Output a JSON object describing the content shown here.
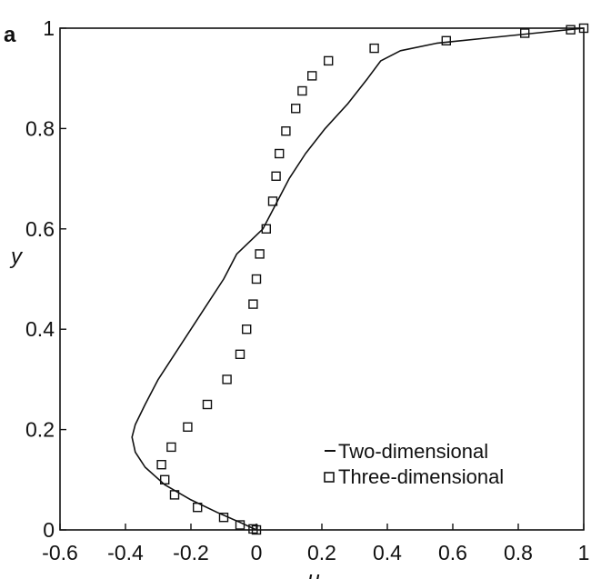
{
  "panel_label": "a",
  "chart_data": {
    "type": "scatter",
    "xlabel": "u",
    "ylabel": "y",
    "xlim": [
      -0.6,
      1.0
    ],
    "ylim": [
      0,
      1.0
    ],
    "xticks": [
      "-0.6",
      "-0.4",
      "-0.2",
      "0",
      "0.2",
      "0.4",
      "0.6",
      "0.8",
      "1"
    ],
    "yticks": [
      "0",
      "0.2",
      "0.4",
      "0.6",
      "0.8",
      "1"
    ],
    "grid": false,
    "legend_position": "bottom-right",
    "series": [
      {
        "name": "Two-dimensional",
        "style": "line",
        "color": "#111111",
        "points": [
          [
            0,
            0
          ],
          [
            -0.05,
            0.015
          ],
          [
            -0.12,
            0.035
          ],
          [
            -0.2,
            0.06
          ],
          [
            -0.28,
            0.09
          ],
          [
            -0.34,
            0.125
          ],
          [
            -0.37,
            0.155
          ],
          [
            -0.38,
            0.185
          ],
          [
            -0.37,
            0.21
          ],
          [
            -0.34,
            0.25
          ],
          [
            -0.3,
            0.3
          ],
          [
            -0.25,
            0.35
          ],
          [
            -0.2,
            0.4
          ],
          [
            -0.15,
            0.45
          ],
          [
            -0.1,
            0.5
          ],
          [
            -0.06,
            0.55
          ],
          [
            0.02,
            0.6
          ],
          [
            0.06,
            0.65
          ],
          [
            0.1,
            0.7
          ],
          [
            0.15,
            0.75
          ],
          [
            0.21,
            0.8
          ],
          [
            0.28,
            0.85
          ],
          [
            0.34,
            0.9
          ],
          [
            0.38,
            0.935
          ],
          [
            0.44,
            0.955
          ],
          [
            0.55,
            0.97
          ],
          [
            0.7,
            0.98
          ],
          [
            0.85,
            0.99
          ],
          [
            1.0,
            1.0
          ]
        ]
      },
      {
        "name": "Three-dimensional",
        "style": "square-marker",
        "color": "#111111",
        "points": [
          [
            0.0,
            0.0
          ],
          [
            -0.01,
            0.002
          ],
          [
            -0.05,
            0.01
          ],
          [
            -0.1,
            0.025
          ],
          [
            -0.18,
            0.045
          ],
          [
            -0.25,
            0.07
          ],
          [
            -0.28,
            0.1
          ],
          [
            -0.29,
            0.13
          ],
          [
            -0.26,
            0.165
          ],
          [
            -0.21,
            0.205
          ],
          [
            -0.15,
            0.25
          ],
          [
            -0.09,
            0.3
          ],
          [
            -0.05,
            0.35
          ],
          [
            -0.03,
            0.4
          ],
          [
            -0.01,
            0.45
          ],
          [
            0.0,
            0.5
          ],
          [
            0.01,
            0.55
          ],
          [
            0.03,
            0.6
          ],
          [
            0.05,
            0.655
          ],
          [
            0.06,
            0.705
          ],
          [
            0.07,
            0.75
          ],
          [
            0.09,
            0.795
          ],
          [
            0.12,
            0.84
          ],
          [
            0.14,
            0.875
          ],
          [
            0.17,
            0.905
          ],
          [
            0.22,
            0.935
          ],
          [
            0.36,
            0.96
          ],
          [
            0.58,
            0.975
          ],
          [
            0.82,
            0.99
          ],
          [
            0.96,
            0.997
          ],
          [
            1.0,
            1.0
          ]
        ]
      }
    ]
  }
}
